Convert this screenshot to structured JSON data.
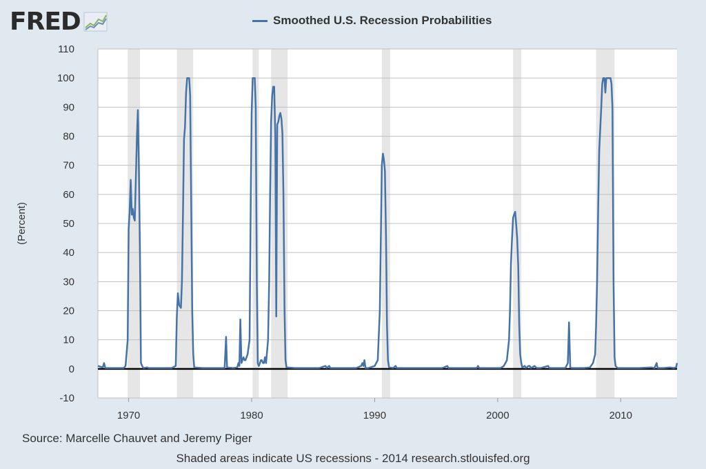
{
  "brand": {
    "logo_text": "FRED"
  },
  "footer": {
    "source": "Source: Marcelle Chauvet and Jeremy Piger",
    "note": "Shaded areas indicate US recessions - 2014 research.stlouisfed.org"
  },
  "chart_data": {
    "type": "line",
    "title": "",
    "ylabel": "(Percent)",
    "xlabel": "",
    "ylim": [
      -10,
      110
    ],
    "xlim": [
      1967.5,
      2014.58
    ],
    "y_ticks": [
      -10,
      0,
      10,
      20,
      30,
      40,
      50,
      60,
      70,
      80,
      90,
      100,
      110
    ],
    "x_ticks": [
      1970,
      1980,
      1990,
      2000,
      2010
    ],
    "grid": true,
    "legend_placement": "top-center",
    "colors": {
      "series": "#4572a7",
      "recession_shading": "#e6e6e6",
      "background": "#e1e9f0",
      "plot_background": "#ffffff",
      "zero_line": "#000000"
    },
    "recessions": [
      [
        1969.92,
        1970.92
      ],
      [
        1973.92,
        1975.25
      ],
      [
        1980.08,
        1980.58
      ],
      [
        1981.58,
        1982.92
      ],
      [
        1990.58,
        1991.25
      ],
      [
        2001.25,
        2001.92
      ],
      [
        2008.0,
        2009.5
      ]
    ],
    "series": [
      {
        "name": "Smoothed U.S. Recession Probabilities",
        "points": [
          [
            1967.5,
            1
          ],
          [
            1967.9,
            0.5
          ],
          [
            1968.0,
            2
          ],
          [
            1968.1,
            0.3
          ],
          [
            1968.5,
            0.3
          ],
          [
            1969.0,
            0.3
          ],
          [
            1969.6,
            0.3
          ],
          [
            1969.75,
            1
          ],
          [
            1969.92,
            10
          ],
          [
            1970.0,
            48
          ],
          [
            1970.08,
            54
          ],
          [
            1970.17,
            65
          ],
          [
            1970.25,
            53
          ],
          [
            1970.33,
            55
          ],
          [
            1970.42,
            52
          ],
          [
            1970.5,
            51
          ],
          [
            1970.58,
            65
          ],
          [
            1970.67,
            80
          ],
          [
            1970.75,
            89
          ],
          [
            1970.83,
            70
          ],
          [
            1970.92,
            40
          ],
          [
            1971.0,
            2
          ],
          [
            1971.1,
            1
          ],
          [
            1971.2,
            0.3
          ],
          [
            1971.5,
            0.5
          ],
          [
            1971.6,
            0.3
          ],
          [
            1972.5,
            0.3
          ],
          [
            1973.5,
            0.3
          ],
          [
            1973.83,
            1
          ],
          [
            1973.92,
            18
          ],
          [
            1974.0,
            26
          ],
          [
            1974.1,
            22
          ],
          [
            1974.25,
            21
          ],
          [
            1974.33,
            30
          ],
          [
            1974.42,
            55
          ],
          [
            1974.5,
            79
          ],
          [
            1974.58,
            83
          ],
          [
            1974.67,
            95
          ],
          [
            1974.75,
            100
          ],
          [
            1974.92,
            100
          ],
          [
            1975.0,
            94
          ],
          [
            1975.08,
            60
          ],
          [
            1975.17,
            20
          ],
          [
            1975.25,
            5
          ],
          [
            1975.33,
            0.5
          ],
          [
            1976.0,
            0.3
          ],
          [
            1977.0,
            0.3
          ],
          [
            1977.8,
            0.3
          ],
          [
            1977.92,
            11
          ],
          [
            1978.0,
            0.5
          ],
          [
            1978.5,
            0.3
          ],
          [
            1978.83,
            0.5
          ],
          [
            1978.92,
            2
          ],
          [
            1979.0,
            1
          ],
          [
            1979.08,
            17
          ],
          [
            1979.17,
            2
          ],
          [
            1979.33,
            4
          ],
          [
            1979.42,
            3
          ],
          [
            1979.5,
            3
          ],
          [
            1979.67,
            5
          ],
          [
            1979.83,
            10
          ],
          [
            1979.92,
            55
          ],
          [
            1980.0,
            88
          ],
          [
            1980.08,
            100
          ],
          [
            1980.25,
            100
          ],
          [
            1980.33,
            90
          ],
          [
            1980.42,
            30
          ],
          [
            1980.5,
            2
          ],
          [
            1980.58,
            1
          ],
          [
            1980.67,
            2
          ],
          [
            1980.75,
            3
          ],
          [
            1980.83,
            3
          ],
          [
            1980.92,
            2
          ],
          [
            1981.0,
            2
          ],
          [
            1981.08,
            4
          ],
          [
            1981.17,
            2
          ],
          [
            1981.33,
            10
          ],
          [
            1981.42,
            30
          ],
          [
            1981.5,
            60
          ],
          [
            1981.58,
            85
          ],
          [
            1981.67,
            94
          ],
          [
            1981.75,
            97
          ],
          [
            1981.83,
            97
          ],
          [
            1981.92,
            80
          ],
          [
            1982.0,
            18
          ],
          [
            1982.08,
            84
          ],
          [
            1982.17,
            85
          ],
          [
            1982.25,
            87
          ],
          [
            1982.33,
            88
          ],
          [
            1982.42,
            86
          ],
          [
            1982.5,
            81
          ],
          [
            1982.58,
            60
          ],
          [
            1982.67,
            20
          ],
          [
            1982.75,
            3
          ],
          [
            1982.83,
            0.5
          ],
          [
            1983.5,
            0.3
          ],
          [
            1984.5,
            0.3
          ],
          [
            1985.5,
            0.3
          ],
          [
            1986.0,
            1
          ],
          [
            1986.1,
            0.3
          ],
          [
            1986.3,
            1
          ],
          [
            1986.4,
            0.3
          ],
          [
            1987.5,
            0.3
          ],
          [
            1988.5,
            0.3
          ],
          [
            1988.9,
            1
          ],
          [
            1989.0,
            2
          ],
          [
            1989.08,
            1
          ],
          [
            1989.17,
            3
          ],
          [
            1989.25,
            0.3
          ],
          [
            1989.5,
            0.3
          ],
          [
            1990.0,
            1
          ],
          [
            1990.25,
            3
          ],
          [
            1990.42,
            20
          ],
          [
            1990.5,
            45
          ],
          [
            1990.58,
            70
          ],
          [
            1990.67,
            74
          ],
          [
            1990.75,
            72
          ],
          [
            1990.83,
            68
          ],
          [
            1990.92,
            45
          ],
          [
            1991.0,
            15
          ],
          [
            1991.08,
            3
          ],
          [
            1991.17,
            0.5
          ],
          [
            1991.5,
            0.3
          ],
          [
            1991.7,
            1
          ],
          [
            1991.8,
            0.3
          ],
          [
            1992.5,
            0.3
          ],
          [
            1993.5,
            0.3
          ],
          [
            1994.5,
            0.3
          ],
          [
            1995.5,
            0.3
          ],
          [
            1995.9,
            1
          ],
          [
            1996.0,
            0.3
          ],
          [
            1997.5,
            0.3
          ],
          [
            1998.3,
            0.3
          ],
          [
            1998.4,
            1
          ],
          [
            1998.5,
            0.3
          ],
          [
            1999.5,
            0.3
          ],
          [
            2000.25,
            0.3
          ],
          [
            2000.5,
            1
          ],
          [
            2000.75,
            3
          ],
          [
            2000.92,
            10
          ],
          [
            2001.0,
            20
          ],
          [
            2001.08,
            36
          ],
          [
            2001.17,
            45
          ],
          [
            2001.25,
            52
          ],
          [
            2001.33,
            53
          ],
          [
            2001.42,
            54
          ],
          [
            2001.5,
            50
          ],
          [
            2001.58,
            45
          ],
          [
            2001.67,
            35
          ],
          [
            2001.75,
            15
          ],
          [
            2001.83,
            5
          ],
          [
            2001.92,
            2
          ],
          [
            2002.0,
            0.5
          ],
          [
            2002.2,
            1
          ],
          [
            2002.3,
            0.3
          ],
          [
            2002.5,
            1
          ],
          [
            2002.6,
            1
          ],
          [
            2002.7,
            0.3
          ],
          [
            2003.0,
            1
          ],
          [
            2003.1,
            0.5
          ],
          [
            2003.2,
            0.3
          ],
          [
            2003.5,
            0.3
          ],
          [
            2004.1,
            1
          ],
          [
            2004.2,
            0.3
          ],
          [
            2005.2,
            0.3
          ],
          [
            2005.5,
            0.3
          ],
          [
            2005.7,
            2
          ],
          [
            2005.8,
            16
          ],
          [
            2005.9,
            0.5
          ],
          [
            2006.0,
            0.3
          ],
          [
            2007.0,
            0.3
          ],
          [
            2007.5,
            0.5
          ],
          [
            2007.75,
            2
          ],
          [
            2007.92,
            5
          ],
          [
            2008.0,
            15
          ],
          [
            2008.08,
            30
          ],
          [
            2008.17,
            55
          ],
          [
            2008.25,
            75
          ],
          [
            2008.33,
            82
          ],
          [
            2008.42,
            90
          ],
          [
            2008.5,
            98
          ],
          [
            2008.58,
            100
          ],
          [
            2008.67,
            100
          ],
          [
            2008.75,
            95
          ],
          [
            2008.83,
            100
          ],
          [
            2009.0,
            100
          ],
          [
            2009.17,
            100
          ],
          [
            2009.25,
            98
          ],
          [
            2009.33,
            90
          ],
          [
            2009.42,
            30
          ],
          [
            2009.5,
            4
          ],
          [
            2009.58,
            1
          ],
          [
            2009.75,
            0.3
          ],
          [
            2010.5,
            0.3
          ],
          [
            2011.5,
            0.3
          ],
          [
            2012.5,
            0.5
          ],
          [
            2012.75,
            0.3
          ],
          [
            2012.92,
            2
          ],
          [
            2013.0,
            0.3
          ],
          [
            2013.5,
            0.3
          ],
          [
            2014.0,
            0.5
          ],
          [
            2014.3,
            0.3
          ],
          [
            2014.5,
            0.5
          ],
          [
            2014.58,
            2
          ]
        ]
      }
    ]
  }
}
